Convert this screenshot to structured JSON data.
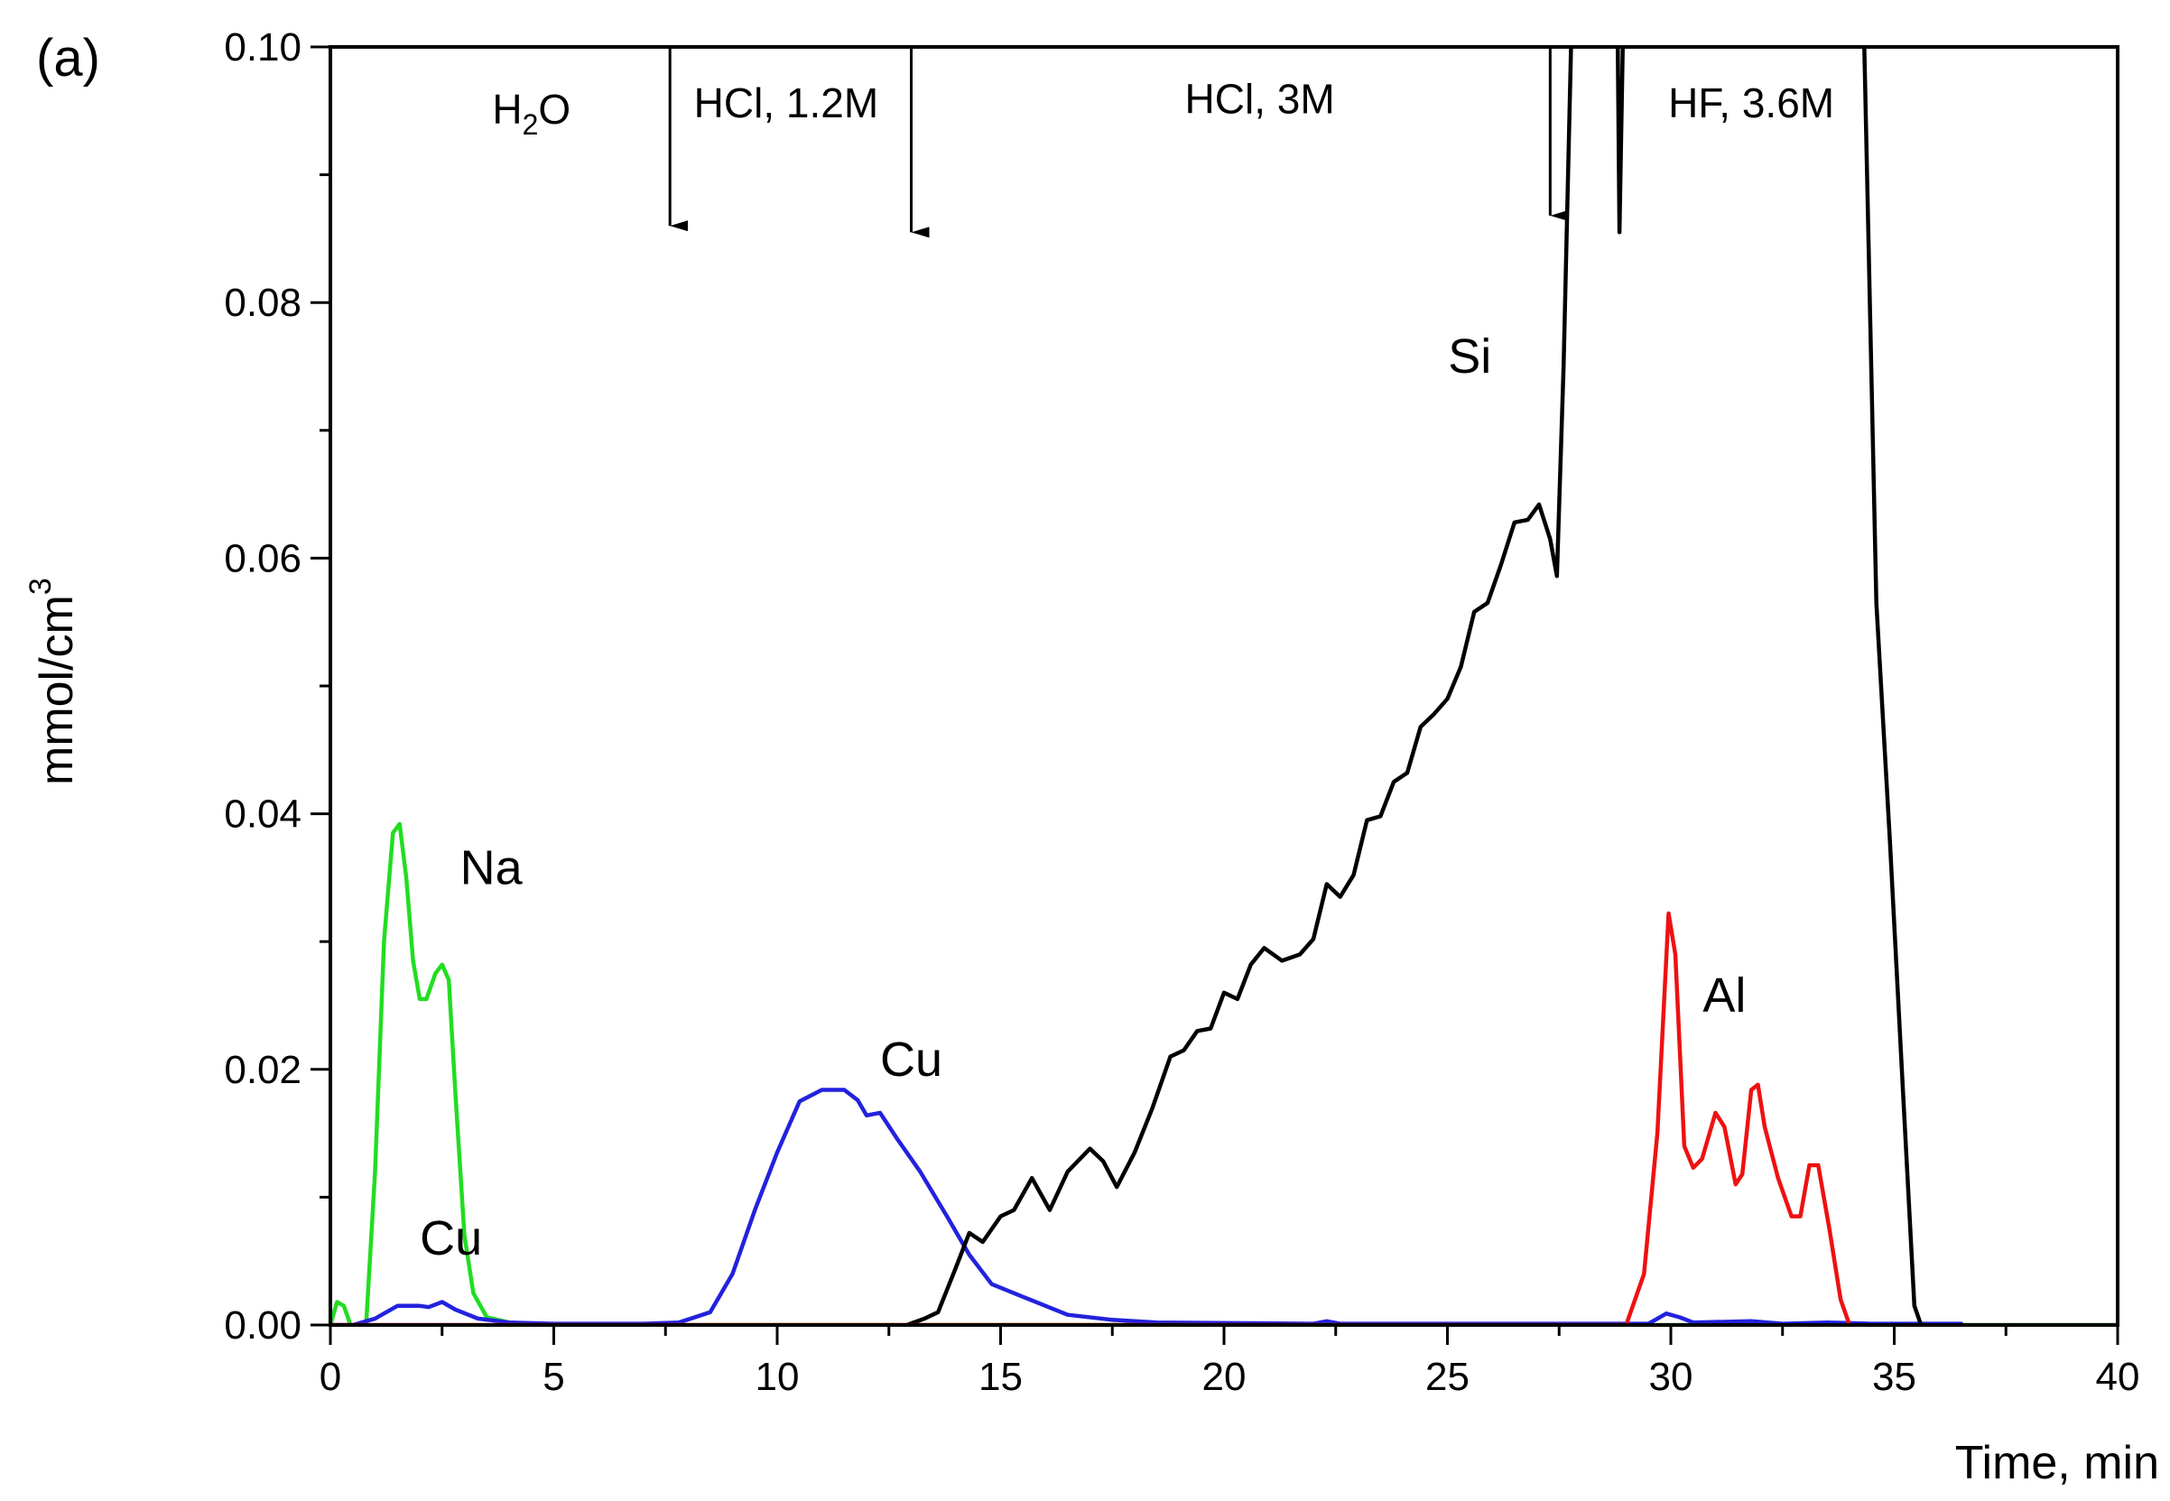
{
  "chart_data": {
    "type": "line",
    "panel_label": "(a)",
    "xlabel": "Time, min",
    "ylabel": "mmol/cm3",
    "ylabel_base": "mmol/cm",
    "ylabel_sup": "3",
    "xlim": [
      0,
      40
    ],
    "ylim": [
      0,
      0.1
    ],
    "x_ticks": [
      0,
      5,
      10,
      15,
      20,
      25,
      30,
      35,
      40
    ],
    "x_tick_labels": [
      "0",
      "5",
      "10",
      "15",
      "20",
      "25",
      "30",
      "35",
      "40"
    ],
    "y_ticks": [
      0,
      0.02,
      0.04,
      0.06,
      0.08,
      0.1
    ],
    "y_tick_labels": [
      "0.00",
      "0.02",
      "0.04",
      "0.06",
      "0.08",
      "0.10"
    ],
    "grid": false,
    "legend": "none",
    "annotations": [
      {
        "text": "H2O",
        "base": "H",
        "sub": "2",
        "rest": "O",
        "x": 4.5,
        "y": 0.094
      },
      {
        "text": "HCl, 1.2M",
        "x": 10.2,
        "y": 0.0945
      },
      {
        "text": "HCl, 3M",
        "x": 20.8,
        "y": 0.0948
      },
      {
        "text": "HF, 3.6M",
        "x": 31.8,
        "y": 0.0945
      }
    ],
    "arrows": [
      {
        "x": 7.6,
        "y_from": 0.1,
        "y_to": 0.086
      },
      {
        "x": 13.0,
        "y_from": 0.1,
        "y_to": 0.0855
      },
      {
        "x": 27.3,
        "y_from": 0.1,
        "y_to": 0.0868
      }
    ],
    "series_labels": [
      {
        "text": "Na",
        "x": 3.6,
        "y": 0.0345,
        "series": "Na"
      },
      {
        "text": "Cu",
        "x": 2.7,
        "y": 0.0055,
        "series": "Cu"
      },
      {
        "text": "Cu",
        "x": 13.0,
        "y": 0.0195,
        "series": "Cu"
      },
      {
        "text": "Si",
        "x": 25.5,
        "y": 0.0745,
        "series": "Si"
      },
      {
        "text": "Al",
        "x": 31.2,
        "y": 0.0245,
        "series": "Al"
      }
    ],
    "series": [
      {
        "name": "Na",
        "color": "#22dd22",
        "points": [
          [
            0,
            0
          ],
          [
            0.15,
            0.0018
          ],
          [
            0.3,
            0.0015
          ],
          [
            0.45,
            0
          ],
          [
            0.8,
            0
          ],
          [
            1.0,
            0.012
          ],
          [
            1.2,
            0.03
          ],
          [
            1.4,
            0.0385
          ],
          [
            1.55,
            0.0392
          ],
          [
            1.7,
            0.035
          ],
          [
            1.85,
            0.0285
          ],
          [
            2.0,
            0.0255
          ],
          [
            2.15,
            0.0255
          ],
          [
            2.35,
            0.0275
          ],
          [
            2.5,
            0.0282
          ],
          [
            2.65,
            0.027
          ],
          [
            2.8,
            0.018
          ],
          [
            3.0,
            0.007
          ],
          [
            3.2,
            0.0025
          ],
          [
            3.5,
            0.0006
          ],
          [
            4.0,
            0.0002
          ],
          [
            5.0,
            0
          ],
          [
            40,
            0
          ]
        ]
      },
      {
        "name": "Cu",
        "color": "#2222dd",
        "points": [
          [
            0,
            0
          ],
          [
            0.5,
            0
          ],
          [
            1.0,
            0.0005
          ],
          [
            1.5,
            0.0015
          ],
          [
            2.0,
            0.0015
          ],
          [
            2.2,
            0.0014
          ],
          [
            2.5,
            0.0018
          ],
          [
            2.8,
            0.0012
          ],
          [
            3.3,
            0.0005
          ],
          [
            4.0,
            0.0002
          ],
          [
            5.0,
            0.0001
          ],
          [
            7.0,
            0.0001
          ],
          [
            7.8,
            0.0002
          ],
          [
            8.5,
            0.001
          ],
          [
            9.0,
            0.004
          ],
          [
            9.5,
            0.009
          ],
          [
            10.0,
            0.0135
          ],
          [
            10.5,
            0.0175
          ],
          [
            11.0,
            0.0184
          ],
          [
            11.5,
            0.0184
          ],
          [
            11.8,
            0.0176
          ],
          [
            12.0,
            0.0164
          ],
          [
            12.3,
            0.0166
          ],
          [
            12.7,
            0.0145
          ],
          [
            13.2,
            0.012
          ],
          [
            13.8,
            0.0085
          ],
          [
            14.3,
            0.0055
          ],
          [
            14.8,
            0.0032
          ],
          [
            15.5,
            0.0022
          ],
          [
            16.5,
            0.0008
          ],
          [
            17.5,
            0.0004
          ],
          [
            18.5,
            0.0002
          ],
          [
            22.0,
            0.0001
          ],
          [
            22.3,
            0.0003
          ],
          [
            22.6,
            0.0001
          ],
          [
            29.5,
            0.0001
          ],
          [
            29.9,
            0.0009
          ],
          [
            30.2,
            0.0006
          ],
          [
            30.5,
            0.0002
          ],
          [
            31.8,
            0.0003
          ],
          [
            32.5,
            0.0001
          ],
          [
            33.5,
            0.0002
          ],
          [
            34.5,
            0.0001
          ],
          [
            36.5,
            0.0001
          ]
        ]
      },
      {
        "name": "Si",
        "color": "#000000",
        "points": [
          [
            12.9,
            0
          ],
          [
            13.3,
            0.0005
          ],
          [
            13.6,
            0.001
          ],
          [
            14.0,
            0.0045
          ],
          [
            14.3,
            0.0072
          ],
          [
            14.6,
            0.0065
          ],
          [
            15.0,
            0.0085
          ],
          [
            15.3,
            0.009
          ],
          [
            15.7,
            0.0115
          ],
          [
            16.1,
            0.009
          ],
          [
            16.5,
            0.012
          ],
          [
            17.0,
            0.0138
          ],
          [
            17.3,
            0.0128
          ],
          [
            17.6,
            0.0108
          ],
          [
            18.0,
            0.0135
          ],
          [
            18.4,
            0.017
          ],
          [
            18.8,
            0.021
          ],
          [
            19.1,
            0.0215
          ],
          [
            19.4,
            0.023
          ],
          [
            19.7,
            0.0232
          ],
          [
            20.0,
            0.026
          ],
          [
            20.3,
            0.0255
          ],
          [
            20.6,
            0.0282
          ],
          [
            20.9,
            0.0295
          ],
          [
            21.3,
            0.0285
          ],
          [
            21.7,
            0.029
          ],
          [
            22.0,
            0.0302
          ],
          [
            22.3,
            0.0345
          ],
          [
            22.6,
            0.0335
          ],
          [
            22.9,
            0.0352
          ],
          [
            23.2,
            0.0395
          ],
          [
            23.5,
            0.0398
          ],
          [
            23.8,
            0.0425
          ],
          [
            24.1,
            0.0432
          ],
          [
            24.4,
            0.0468
          ],
          [
            24.7,
            0.0478
          ],
          [
            25.0,
            0.049
          ],
          [
            25.3,
            0.0515
          ],
          [
            25.6,
            0.0558
          ],
          [
            25.9,
            0.0565
          ],
          [
            26.2,
            0.0595
          ],
          [
            26.5,
            0.0628
          ],
          [
            26.8,
            0.063
          ],
          [
            27.05,
            0.0642
          ],
          [
            27.3,
            0.0615
          ],
          [
            27.45,
            0.0586
          ],
          [
            27.6,
            0.075
          ],
          [
            27.8,
            0.105
          ],
          [
            28.8,
            0.105
          ],
          [
            28.85,
            0.0855
          ],
          [
            28.95,
            0.105
          ],
          [
            34.3,
            0.105
          ],
          [
            34.6,
            0.0565
          ],
          [
            34.9,
            0.038
          ],
          [
            35.2,
            0.018
          ],
          [
            35.45,
            0.0015
          ],
          [
            35.6,
            0
          ]
        ]
      },
      {
        "name": "Al",
        "color": "#ee1111",
        "points": [
          [
            0,
            0
          ],
          [
            29.0,
            0
          ],
          [
            29.4,
            0.004
          ],
          [
            29.7,
            0.015
          ],
          [
            29.95,
            0.0322
          ],
          [
            30.1,
            0.029
          ],
          [
            30.3,
            0.014
          ],
          [
            30.5,
            0.0123
          ],
          [
            30.7,
            0.013
          ],
          [
            31.0,
            0.0166
          ],
          [
            31.2,
            0.0155
          ],
          [
            31.45,
            0.011
          ],
          [
            31.6,
            0.0118
          ],
          [
            31.8,
            0.0184
          ],
          [
            31.95,
            0.0188
          ],
          [
            32.1,
            0.0155
          ],
          [
            32.4,
            0.0115
          ],
          [
            32.7,
            0.0085
          ],
          [
            32.9,
            0.0085
          ],
          [
            33.1,
            0.0125
          ],
          [
            33.3,
            0.0125
          ],
          [
            33.55,
            0.0075
          ],
          [
            33.8,
            0.002
          ],
          [
            34.0,
            0
          ]
        ]
      }
    ]
  }
}
